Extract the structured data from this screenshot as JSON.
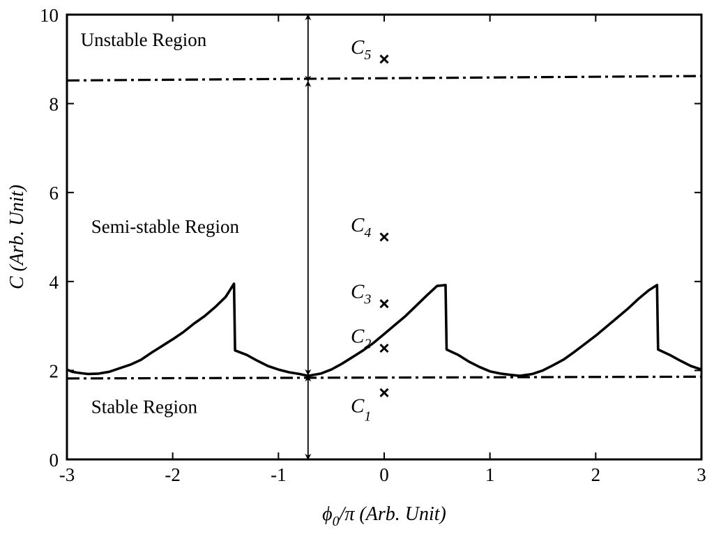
{
  "chart_data": {
    "type": "line",
    "xlabel_main": "ϕ",
    "xlabel_sub": "0",
    "xlabel_rest": "/π (Arb. Unit)",
    "ylabel": "C (Arb. Unit)",
    "xlim": [
      -3,
      3
    ],
    "ylim": [
      0,
      10
    ],
    "x_ticks": [
      -3,
      -2,
      -1,
      0,
      1,
      2,
      3
    ],
    "y_ticks": [
      0,
      2,
      4,
      6,
      8,
      10
    ],
    "grid": false,
    "series": [
      {
        "style": "solid",
        "x": [
          -3.0,
          -2.95,
          -2.9,
          -2.8,
          -2.7,
          -2.6,
          -2.5,
          -2.4,
          -2.3,
          -2.2,
          -2.1,
          -2.0,
          -1.9,
          -1.8,
          -1.7,
          -1.6,
          -1.5,
          -1.42,
          -1.41,
          -1.3,
          -1.2,
          -1.1,
          -1.0,
          -0.9,
          -0.8,
          -0.72,
          -0.6,
          -0.5,
          -0.4,
          -0.3,
          -0.2,
          -0.1,
          0.0,
          0.1,
          0.2,
          0.3,
          0.4,
          0.5,
          0.58,
          0.59,
          0.7,
          0.8,
          0.9,
          1.0,
          1.1,
          1.2,
          1.28,
          1.4,
          1.5,
          1.6,
          1.7,
          1.8,
          1.9,
          2.0,
          2.1,
          2.2,
          2.3,
          2.4,
          2.5,
          2.58,
          2.59,
          2.7,
          2.8,
          2.9,
          3.0
        ],
        "y": [
          2.02,
          1.97,
          1.95,
          1.92,
          1.93,
          1.97,
          2.05,
          2.13,
          2.24,
          2.4,
          2.55,
          2.7,
          2.86,
          3.05,
          3.22,
          3.42,
          3.65,
          3.95,
          2.45,
          2.35,
          2.22,
          2.1,
          2.02,
          1.96,
          1.92,
          1.88,
          1.93,
          2.02,
          2.15,
          2.3,
          2.45,
          2.62,
          2.82,
          3.02,
          3.22,
          3.45,
          3.68,
          3.9,
          3.92,
          2.47,
          2.35,
          2.2,
          2.08,
          1.98,
          1.93,
          1.9,
          1.88,
          1.92,
          2.0,
          2.12,
          2.25,
          2.42,
          2.6,
          2.78,
          2.98,
          3.18,
          3.38,
          3.6,
          3.8,
          3.92,
          2.47,
          2.35,
          2.22,
          2.1,
          2.02
        ]
      }
    ],
    "lower_boundary": {
      "style": "dash-dot",
      "x": [
        -3,
        3
      ],
      "y": [
        1.82,
        1.86
      ]
    },
    "upper_boundary": {
      "style": "dash-dot",
      "x": [
        -3,
        3
      ],
      "y": [
        8.52,
        8.62
      ]
    },
    "arrows": [
      {
        "x": -0.72,
        "y0": 8.5,
        "y1": 10.0
      },
      {
        "x": -0.72,
        "y0": 1.9,
        "y1": 8.5
      },
      {
        "x": -0.72,
        "y0": 0.0,
        "y1": 1.88
      }
    ],
    "points": [
      {
        "label": "C",
        "sub": "1",
        "x": 0,
        "y": 1.5
      },
      {
        "label": "C",
        "sub": "2",
        "x": 0,
        "y": 2.5
      },
      {
        "label": "C",
        "sub": "3",
        "x": 0,
        "y": 3.5
      },
      {
        "label": "C",
        "sub": "4",
        "x": 0,
        "y": 5.0
      },
      {
        "label": "C",
        "sub": "5",
        "x": 0,
        "y": 9.0
      }
    ],
    "region_labels": [
      {
        "text": "Unstable Region",
        "x": -2.95,
        "y": 9.45
      },
      {
        "text": "Semi-stable Region",
        "x": -2.85,
        "y": 5.25
      },
      {
        "text": "Stable Region",
        "x": -2.85,
        "y": 1.2
      }
    ]
  }
}
